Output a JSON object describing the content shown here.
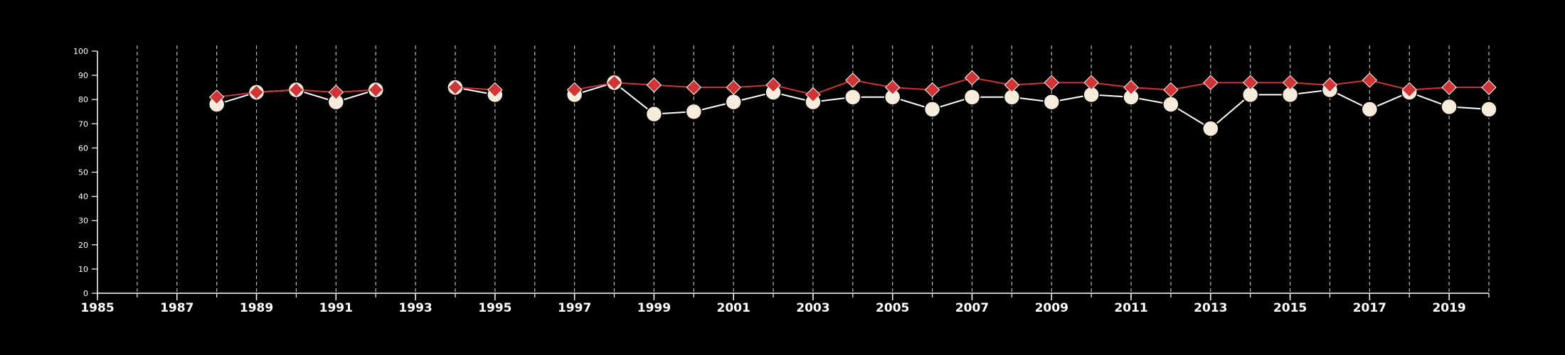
{
  "chart_data": {
    "type": "line",
    "title": "",
    "xlabel": "",
    "ylabel": "",
    "xlim": [
      1985,
      2020
    ],
    "ylim": [
      0,
      100
    ],
    "y_ticks": [
      0,
      10,
      20,
      30,
      40,
      50,
      60,
      70,
      80,
      90,
      100
    ],
    "x_ticks": [
      1985,
      1987,
      1989,
      1991,
      1993,
      1995,
      1997,
      1999,
      2001,
      2003,
      2005,
      2007,
      2009,
      2011,
      2013,
      2015,
      2017,
      2019
    ],
    "x_tick_labels": [
      "1985",
      "1987",
      "1989",
      "1991",
      "1993",
      "1995",
      "1997",
      "1999",
      "2001",
      "2003",
      "2005",
      "2007",
      "2009",
      "2011",
      "2013",
      "2015",
      "2017",
      "2019"
    ],
    "grid": "vertical dashed lines at every year",
    "legend": "none",
    "colors": {
      "background": "#000000",
      "axis": "#ffffff",
      "grid": "#bbbbbb",
      "series_circle_fill": "#f7ebdc",
      "series_circle_line": "#ffffff",
      "series_diamond_fill": "#d13434",
      "series_diamond_line": "#d13434"
    },
    "x": [
      1988,
      1989,
      1990,
      1991,
      1992,
      1993,
      1994,
      1995,
      1996,
      1997,
      1998,
      1999,
      2000,
      2001,
      2002,
      2003,
      2004,
      2005,
      2006,
      2007,
      2008,
      2009,
      2010,
      2011,
      2012,
      2013,
      2014,
      2015,
      2016,
      2017,
      2018,
      2019,
      2020
    ],
    "series": [
      {
        "marker": "circle",
        "values": [
          78,
          83,
          84,
          79,
          84,
          null,
          85,
          82,
          null,
          82,
          87,
          74,
          75,
          79,
          83,
          79,
          81,
          81,
          76,
          81,
          81,
          79,
          82,
          81,
          78,
          68,
          82,
          82,
          84,
          76,
          83,
          77,
          76
        ]
      },
      {
        "marker": "diamond",
        "values": [
          81,
          83,
          84,
          83,
          84,
          null,
          85,
          84,
          null,
          84,
          87,
          86,
          85,
          85,
          86,
          82,
          88,
          85,
          84,
          89,
          86,
          87,
          87,
          85,
          84,
          87,
          87,
          87,
          86,
          88,
          84,
          85,
          85
        ]
      }
    ]
  }
}
